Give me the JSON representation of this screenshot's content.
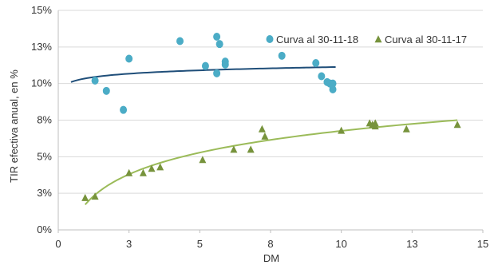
{
  "chart_data": {
    "type": "scatter",
    "xlabel": "DM",
    "ylabel": "TIR efectiva anual, en %",
    "xlim": [
      0,
      15
    ],
    "ylim": [
      0,
      15
    ],
    "x_ticks": [
      0,
      2.5,
      5,
      7.5,
      10,
      12.5,
      15
    ],
    "x_tick_labels": [
      "0",
      "3",
      "5",
      "8",
      "10",
      "13",
      "15"
    ],
    "y_ticks": [
      0,
      2.5,
      5,
      7.5,
      10,
      12.5,
      15
    ],
    "y_tick_labels": [
      "0%",
      "3%",
      "5%",
      "8%",
      "10%",
      "13%",
      "15%"
    ],
    "grid": "horizontal",
    "legend_position": "top-right",
    "series": [
      {
        "name": "Curva al 30-11-18",
        "marker": "circle",
        "color": "#4bacc6",
        "trend_color": "#1f4e79",
        "trend_range": [
          0.45,
          9.8
        ],
        "points": [
          [
            1.3,
            10.2
          ],
          [
            1.7,
            9.5
          ],
          [
            2.3,
            8.2
          ],
          [
            2.5,
            11.7
          ],
          [
            4.3,
            12.9
          ],
          [
            5.2,
            11.2
          ],
          [
            5.6,
            13.2
          ],
          [
            5.7,
            12.7
          ],
          [
            5.9,
            11.3
          ],
          [
            5.9,
            11.5
          ],
          [
            5.6,
            10.7
          ],
          [
            7.9,
            11.9
          ],
          [
            9.1,
            11.4
          ],
          [
            9.3,
            10.5
          ],
          [
            9.5,
            10.1
          ],
          [
            9.6,
            10.0
          ],
          [
            9.7,
            10.0
          ],
          [
            9.7,
            9.6
          ]
        ]
      },
      {
        "name": "Curva al 30-11-17",
        "marker": "triangle",
        "color": "#77933c",
        "trend_color": "#9bbb59",
        "trend_range": [
          0.95,
          14.1
        ],
        "points": [
          [
            0.95,
            2.2
          ],
          [
            1.3,
            2.3
          ],
          [
            2.5,
            3.9
          ],
          [
            3.0,
            3.9
          ],
          [
            3.3,
            4.2
          ],
          [
            3.6,
            4.3
          ],
          [
            5.1,
            4.8
          ],
          [
            6.2,
            5.5
          ],
          [
            6.8,
            5.5
          ],
          [
            7.2,
            6.9
          ],
          [
            7.3,
            6.4
          ],
          [
            10.0,
            6.8
          ],
          [
            11.0,
            7.3
          ],
          [
            11.1,
            7.2
          ],
          [
            11.2,
            7.1
          ],
          [
            11.2,
            7.3
          ],
          [
            12.3,
            6.9
          ],
          [
            14.1,
            7.2
          ]
        ]
      }
    ]
  }
}
